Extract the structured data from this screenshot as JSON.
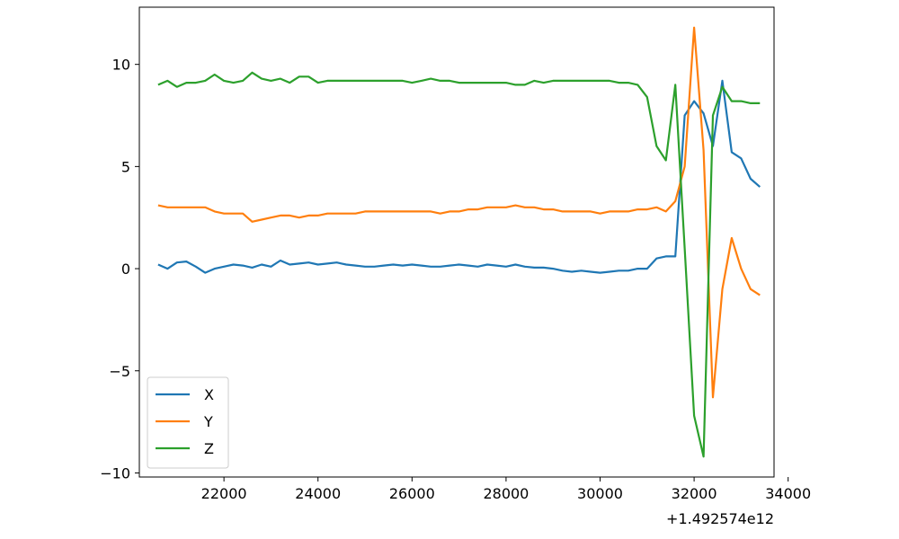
{
  "chart_data": {
    "type": "line",
    "title": "",
    "xlabel": "",
    "ylabel": "",
    "x_offset_label": "+1.492574e12",
    "xlim": [
      20200,
      33700
    ],
    "ylim": [
      -10.2,
      12.8
    ],
    "xticks": [
      {
        "value": 22000,
        "label": "22000"
      },
      {
        "value": 24000,
        "label": "24000"
      },
      {
        "value": 26000,
        "label": "26000"
      },
      {
        "value": 28000,
        "label": "28000"
      },
      {
        "value": 30000,
        "label": "30000"
      },
      {
        "value": 32000,
        "label": "32000"
      },
      {
        "value": 34000,
        "label": "34000"
      }
    ],
    "yticks": [
      {
        "value": 10,
        "label": "10"
      },
      {
        "value": 5,
        "label": "5"
      },
      {
        "value": 0,
        "label": "0"
      },
      {
        "value": -5,
        "label": "−5"
      },
      {
        "value": -10,
        "label": "−10"
      }
    ],
    "grid": false,
    "legend_position": "lower-left",
    "x": [
      20600,
      20800,
      21000,
      21200,
      21400,
      21600,
      21800,
      22000,
      22200,
      22400,
      22600,
      22800,
      23000,
      23200,
      23400,
      23600,
      23800,
      24000,
      24200,
      24400,
      24600,
      24800,
      25000,
      25200,
      25400,
      25600,
      25800,
      26000,
      26200,
      26400,
      26600,
      26800,
      27000,
      27200,
      27400,
      27600,
      27800,
      28000,
      28200,
      28400,
      28600,
      28800,
      29000,
      29200,
      29400,
      29600,
      29800,
      30000,
      30200,
      30400,
      30600,
      30800,
      31000,
      31200,
      31400,
      31600,
      31800,
      32000,
      32200,
      32400,
      32600,
      32800,
      33000,
      33200,
      33400
    ],
    "series": [
      {
        "name": "X",
        "color": "#1f77b4",
        "values": [
          0.2,
          0.0,
          0.3,
          0.35,
          0.1,
          -0.2,
          0.0,
          0.1,
          0.2,
          0.15,
          0.05,
          0.2,
          0.1,
          0.4,
          0.2,
          0.25,
          0.3,
          0.2,
          0.25,
          0.3,
          0.2,
          0.15,
          0.1,
          0.1,
          0.15,
          0.2,
          0.15,
          0.2,
          0.15,
          0.1,
          0.1,
          0.15,
          0.2,
          0.15,
          0.1,
          0.2,
          0.15,
          0.1,
          0.2,
          0.1,
          0.05,
          0.05,
          0.0,
          -0.1,
          -0.15,
          -0.1,
          -0.15,
          -0.2,
          -0.15,
          -0.1,
          -0.1,
          0.0,
          0.0,
          0.5,
          0.6,
          0.6,
          7.5,
          8.2,
          7.6,
          6.0,
          9.2,
          5.7,
          5.4,
          4.4,
          4.0
        ]
      },
      {
        "name": "Y",
        "color": "#ff7f0e",
        "values": [
          3.1,
          3.0,
          3.0,
          3.0,
          3.0,
          3.0,
          2.8,
          2.7,
          2.7,
          2.7,
          2.3,
          2.4,
          2.5,
          2.6,
          2.6,
          2.5,
          2.6,
          2.6,
          2.7,
          2.7,
          2.7,
          2.7,
          2.8,
          2.8,
          2.8,
          2.8,
          2.8,
          2.8,
          2.8,
          2.8,
          2.7,
          2.8,
          2.8,
          2.9,
          2.9,
          3.0,
          3.0,
          3.0,
          3.1,
          3.0,
          3.0,
          2.9,
          2.9,
          2.8,
          2.8,
          2.8,
          2.8,
          2.7,
          2.8,
          2.8,
          2.8,
          2.9,
          2.9,
          3.0,
          2.8,
          3.3,
          5.0,
          11.8,
          5.8,
          -6.3,
          -1.0,
          1.5,
          0.0,
          -1.0,
          -1.3
        ]
      },
      {
        "name": "Z",
        "color": "#2ca02c",
        "values": [
          9.0,
          9.2,
          8.9,
          9.1,
          9.1,
          9.2,
          9.5,
          9.2,
          9.1,
          9.2,
          9.6,
          9.3,
          9.2,
          9.3,
          9.1,
          9.4,
          9.4,
          9.1,
          9.2,
          9.2,
          9.2,
          9.2,
          9.2,
          9.2,
          9.2,
          9.2,
          9.2,
          9.1,
          9.2,
          9.3,
          9.2,
          9.2,
          9.1,
          9.1,
          9.1,
          9.1,
          9.1,
          9.1,
          9.0,
          9.0,
          9.2,
          9.1,
          9.2,
          9.2,
          9.2,
          9.2,
          9.2,
          9.2,
          9.2,
          9.1,
          9.1,
          9.0,
          8.4,
          6.0,
          5.3,
          9.0,
          1.0,
          -7.2,
          -9.2,
          7.5,
          8.9,
          8.2,
          8.2,
          8.1,
          8.1
        ]
      }
    ]
  }
}
